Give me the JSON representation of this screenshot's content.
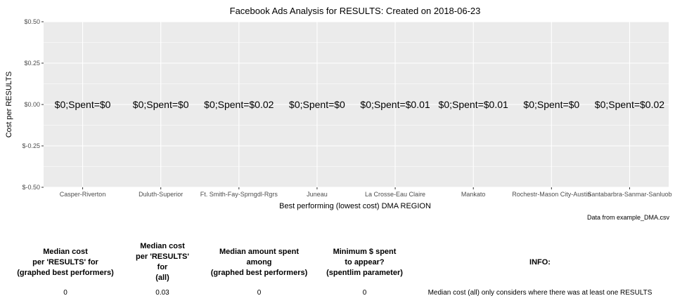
{
  "chart_data": {
    "type": "bar",
    "title": "Facebook Ads Analysis for RESULTS: Created on  2018-06-23",
    "xlabel": "Best performing (lowest cost) DMA REGION",
    "ylabel": "Cost per RESULTS",
    "ylim": [
      -0.5,
      0.5
    ],
    "yticks": [
      0.5,
      0.25,
      0.0,
      -0.25,
      -0.5
    ],
    "ytick_labels": [
      "$0.50",
      "$0.25",
      "$0.00",
      "$-0.25",
      "$-0.50"
    ],
    "grid": true,
    "categories": [
      "Casper-Riverton",
      "Duluth-Superior",
      "Ft. Smith-Fay-Sprngdl-Rgrs",
      "Juneau",
      "La Crosse-Eau Claire",
      "Mankato",
      "Rochestr-Mason City-Austin",
      "Santabarbra-Sanmar-Sanluob"
    ],
    "values": [
      0,
      0,
      0,
      0,
      0,
      0,
      0,
      0
    ],
    "data_labels": [
      "$0;Spent=$0",
      "$0;Spent=$0",
      "$0;Spent=$0.02",
      "$0;Spent=$0",
      "$0;Spent=$0.01",
      "$0;Spent=$0.01",
      "$0;Spent=$0",
      "$0;Spent=$0.02"
    ],
    "colors": {
      "panel": "#ebebeb",
      "grid": "#ffffff",
      "tick": "#4d4d4d"
    }
  },
  "caption": "Data from example_DMA.csv",
  "summary_table": {
    "headers": [
      [
        "Median cost",
        "per 'RESULTS' for",
        "(graphed best performers)"
      ],
      [
        "Median cost",
        "per 'RESULTS' for",
        "(all)"
      ],
      [
        "Median amount spent",
        "among",
        "(graphed best performers)"
      ],
      [
        "Minimum $ spent",
        "to appear?",
        "(spentlim parameter)"
      ],
      [
        "INFO:"
      ]
    ],
    "values": [
      "0",
      "0.03",
      "0",
      "0",
      "Median cost (all) only considers where there was at least one RESULTS"
    ]
  }
}
